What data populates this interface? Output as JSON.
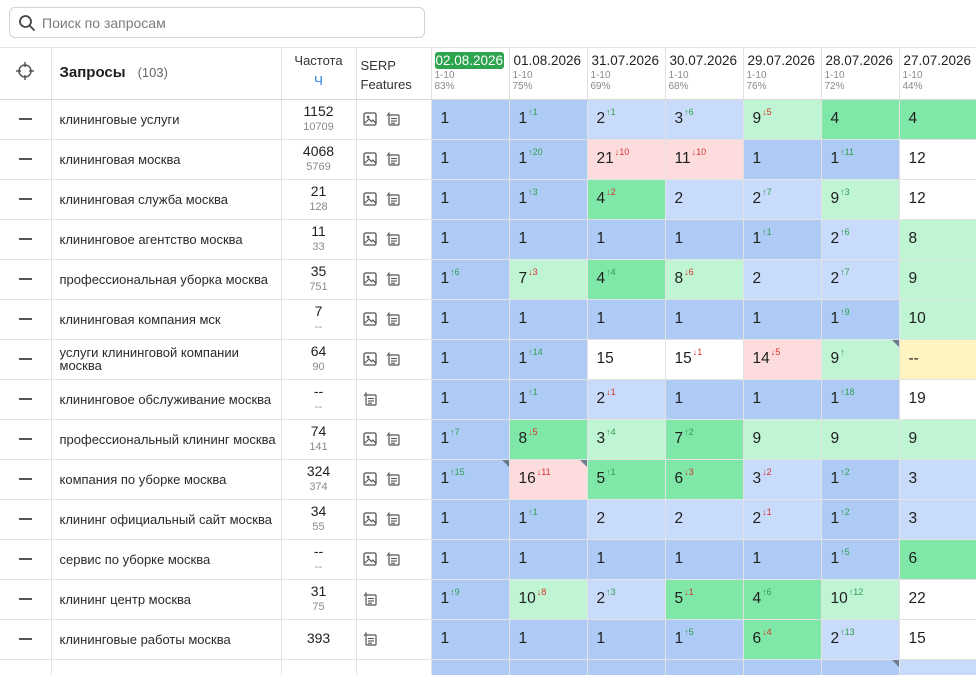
{
  "search": {
    "placeholder": "Поиск по запросам",
    "value": ""
  },
  "header": {
    "queries_label": "Запросы",
    "queries_count": "(103)",
    "frequency_label": "Частота",
    "frequency_sub": "Ч",
    "serp_line1": "SERP",
    "serp_line2": "Features",
    "dates": [
      {
        "date": "02.08.2026",
        "range": "1-10",
        "pct": "83%"
      },
      {
        "date": "01.08.2026",
        "range": "1-10",
        "pct": "75%"
      },
      {
        "date": "31.07.2026",
        "range": "1-10",
        "pct": "69%"
      },
      {
        "date": "30.07.2026",
        "range": "1-10",
        "pct": "68%"
      },
      {
        "date": "29.07.2026",
        "range": "1-10",
        "pct": "76%"
      },
      {
        "date": "28.07.2026",
        "range": "1-10",
        "pct": "72%"
      },
      {
        "date": "27.07.2026",
        "range": "1-10",
        "pct": "44%"
      }
    ]
  },
  "rows": [
    {
      "query": "клининговые услуги",
      "freq": "1152",
      "freq2": "10709",
      "serp": [
        "image",
        "snippet"
      ],
      "cells": [
        {
          "pos": "1",
          "d": "",
          "c": "b1"
        },
        {
          "pos": "1",
          "d": "↑1",
          "c": "b1"
        },
        {
          "pos": "2",
          "d": "↑1",
          "c": "b2"
        },
        {
          "pos": "3",
          "d": "↑6",
          "c": "b2"
        },
        {
          "pos": "9",
          "d": "↓5",
          "c": "g2"
        },
        {
          "pos": "4",
          "d": "",
          "c": "g1"
        },
        {
          "pos": "4",
          "d": "",
          "c": "g1"
        }
      ]
    },
    {
      "query": "клининговая москва",
      "freq": "4068",
      "freq2": "5769",
      "serp": [
        "image",
        "snippet"
      ],
      "cells": [
        {
          "pos": "1",
          "d": "",
          "c": "b1"
        },
        {
          "pos": "1",
          "d": "↑20",
          "c": "b1"
        },
        {
          "pos": "21",
          "d": "↓10",
          "c": "r1"
        },
        {
          "pos": "11",
          "d": "↓10",
          "c": "r1"
        },
        {
          "pos": "1",
          "d": "",
          "c": "b1"
        },
        {
          "pos": "1",
          "d": "↑11",
          "c": "b1"
        },
        {
          "pos": "12",
          "d": "",
          "c": "w1"
        }
      ]
    },
    {
      "query": "клининговая служба москва",
      "freq": "21",
      "freq2": "128",
      "serp": [
        "image",
        "snippet"
      ],
      "cells": [
        {
          "pos": "1",
          "d": "",
          "c": "b1"
        },
        {
          "pos": "1",
          "d": "↑3",
          "c": "b1"
        },
        {
          "pos": "4",
          "d": "↓2",
          "c": "g1"
        },
        {
          "pos": "2",
          "d": "",
          "c": "b2"
        },
        {
          "pos": "2",
          "d": "↑7",
          "c": "b2"
        },
        {
          "pos": "9",
          "d": "↑3",
          "c": "g2"
        },
        {
          "pos": "12",
          "d": "",
          "c": "w1"
        }
      ]
    },
    {
      "query": "клининговое агентство москва",
      "freq": "11",
      "freq2": "33",
      "serp": [
        "image",
        "snippet"
      ],
      "cells": [
        {
          "pos": "1",
          "d": "",
          "c": "b1"
        },
        {
          "pos": "1",
          "d": "",
          "c": "b1"
        },
        {
          "pos": "1",
          "d": "",
          "c": "b1"
        },
        {
          "pos": "1",
          "d": "",
          "c": "b1"
        },
        {
          "pos": "1",
          "d": "↑1",
          "c": "b1"
        },
        {
          "pos": "2",
          "d": "↑6",
          "c": "b2"
        },
        {
          "pos": "8",
          "d": "",
          "c": "g2"
        }
      ]
    },
    {
      "query": "профессиональная уборка москва",
      "freq": "35",
      "freq2": "751",
      "serp": [
        "image",
        "snippet"
      ],
      "cells": [
        {
          "pos": "1",
          "d": "↑6",
          "c": "b1"
        },
        {
          "pos": "7",
          "d": "↓3",
          "c": "g2"
        },
        {
          "pos": "4",
          "d": "↑4",
          "c": "g1"
        },
        {
          "pos": "8",
          "d": "↓6",
          "c": "g2"
        },
        {
          "pos": "2",
          "d": "",
          "c": "b2"
        },
        {
          "pos": "2",
          "d": "↑7",
          "c": "b2"
        },
        {
          "pos": "9",
          "d": "",
          "c": "g2"
        }
      ]
    },
    {
      "query": "клининговая компания мск",
      "freq": "7",
      "freq2": "--",
      "serp": [
        "image",
        "snippet"
      ],
      "cells": [
        {
          "pos": "1",
          "d": "",
          "c": "b1"
        },
        {
          "pos": "1",
          "d": "",
          "c": "b1"
        },
        {
          "pos": "1",
          "d": "",
          "c": "b1"
        },
        {
          "pos": "1",
          "d": "",
          "c": "b1"
        },
        {
          "pos": "1",
          "d": "",
          "c": "b1"
        },
        {
          "pos": "1",
          "d": "↑9",
          "c": "b1"
        },
        {
          "pos": "10",
          "d": "",
          "c": "g2"
        }
      ]
    },
    {
      "query": "услуги клининговой компании москва",
      "freq": "64",
      "freq2": "90",
      "serp": [
        "image",
        "snippet"
      ],
      "cells": [
        {
          "pos": "1",
          "d": "",
          "c": "b1"
        },
        {
          "pos": "1",
          "d": "↑14",
          "c": "b1"
        },
        {
          "pos": "15",
          "d": "",
          "c": "w1"
        },
        {
          "pos": "15",
          "d": "↓1",
          "c": "w1"
        },
        {
          "pos": "14",
          "d": "↓5",
          "c": "r1"
        },
        {
          "pos": "9",
          "d": "↑",
          "c": "g2",
          "corner": true
        },
        {
          "pos": "--",
          "d": "",
          "c": "y1"
        }
      ]
    },
    {
      "query": "клининговое обслуживание москва",
      "freq": "--",
      "freq2": "--",
      "serp": [
        "snippet"
      ],
      "cells": [
        {
          "pos": "1",
          "d": "",
          "c": "b1"
        },
        {
          "pos": "1",
          "d": "↑1",
          "c": "b1"
        },
        {
          "pos": "2",
          "d": "↓1",
          "c": "b2"
        },
        {
          "pos": "1",
          "d": "",
          "c": "b1"
        },
        {
          "pos": "1",
          "d": "",
          "c": "b1"
        },
        {
          "pos": "1",
          "d": "↑18",
          "c": "b1"
        },
        {
          "pos": "19",
          "d": "",
          "c": "w1"
        }
      ]
    },
    {
      "query": "профессиональный клининг москва",
      "freq": "74",
      "freq2": "141",
      "serp": [
        "image",
        "snippet"
      ],
      "cells": [
        {
          "pos": "1",
          "d": "↑7",
          "c": "b1"
        },
        {
          "pos": "8",
          "d": "↓5",
          "c": "g1"
        },
        {
          "pos": "3",
          "d": "↑4",
          "c": "g2"
        },
        {
          "pos": "7",
          "d": "↑2",
          "c": "g1"
        },
        {
          "pos": "9",
          "d": "",
          "c": "g2"
        },
        {
          "pos": "9",
          "d": "",
          "c": "g2"
        },
        {
          "pos": "9",
          "d": "",
          "c": "g2"
        }
      ]
    },
    {
      "query": "компания по уборке москва",
      "freq": "324",
      "freq2": "374",
      "serp": [
        "image",
        "snippet"
      ],
      "cells": [
        {
          "pos": "1",
          "d": "↑15",
          "c": "b1",
          "corner": true
        },
        {
          "pos": "16",
          "d": "↓11",
          "c": "r1",
          "corner": true
        },
        {
          "pos": "5",
          "d": "↑1",
          "c": "g1"
        },
        {
          "pos": "6",
          "d": "↓3",
          "c": "g1"
        },
        {
          "pos": "3",
          "d": "↓2",
          "c": "b2"
        },
        {
          "pos": "1",
          "d": "↑2",
          "c": "b1"
        },
        {
          "pos": "3",
          "d": "",
          "c": "b2"
        }
      ]
    },
    {
      "query": "клининг официальный сайт москва",
      "freq": "34",
      "freq2": "55",
      "serp": [
        "image",
        "snippet"
      ],
      "cells": [
        {
          "pos": "1",
          "d": "",
          "c": "b1"
        },
        {
          "pos": "1",
          "d": "↑1",
          "c": "b1"
        },
        {
          "pos": "2",
          "d": "",
          "c": "b2"
        },
        {
          "pos": "2",
          "d": "",
          "c": "b2"
        },
        {
          "pos": "2",
          "d": "↓1",
          "c": "b2"
        },
        {
          "pos": "1",
          "d": "↑2",
          "c": "b1"
        },
        {
          "pos": "3",
          "d": "",
          "c": "b2"
        }
      ]
    },
    {
      "query": "сервис по уборке москва",
      "freq": "--",
      "freq2": "--",
      "serp": [
        "image",
        "snippet"
      ],
      "cells": [
        {
          "pos": "1",
          "d": "",
          "c": "b1"
        },
        {
          "pos": "1",
          "d": "",
          "c": "b1"
        },
        {
          "pos": "1",
          "d": "",
          "c": "b1"
        },
        {
          "pos": "1",
          "d": "",
          "c": "b1"
        },
        {
          "pos": "1",
          "d": "",
          "c": "b1"
        },
        {
          "pos": "1",
          "d": "↑5",
          "c": "b1"
        },
        {
          "pos": "6",
          "d": "",
          "c": "g1"
        }
      ]
    },
    {
      "query": "клининг центр москва",
      "freq": "31",
      "freq2": "75",
      "serp": [
        "snippet"
      ],
      "cells": [
        {
          "pos": "1",
          "d": "↑9",
          "c": "b1"
        },
        {
          "pos": "10",
          "d": "↓8",
          "c": "g2"
        },
        {
          "pos": "2",
          "d": "↑3",
          "c": "b2"
        },
        {
          "pos": "5",
          "d": "↓1",
          "c": "g1"
        },
        {
          "pos": "4",
          "d": "↑6",
          "c": "g1"
        },
        {
          "pos": "10",
          "d": "↑12",
          "c": "g2"
        },
        {
          "pos": "22",
          "d": "",
          "c": "w1"
        }
      ]
    },
    {
      "query": "клининговые работы москва",
      "freq": "393",
      "freq2": "",
      "serp": [
        "snippet"
      ],
      "cells": [
        {
          "pos": "1",
          "d": "",
          "c": "b1"
        },
        {
          "pos": "1",
          "d": "",
          "c": "b1"
        },
        {
          "pos": "1",
          "d": "",
          "c": "b1"
        },
        {
          "pos": "1",
          "d": "↑5",
          "c": "b1"
        },
        {
          "pos": "6",
          "d": "↓4",
          "c": "g1"
        },
        {
          "pos": "2",
          "d": "↑13",
          "c": "b2"
        },
        {
          "pos": "15",
          "d": "",
          "c": "w1"
        }
      ]
    },
    {
      "query": "",
      "freq": "",
      "freq2": "",
      "serp": [],
      "cells": [
        {
          "pos": "",
          "d": "",
          "c": "b1"
        },
        {
          "pos": "",
          "d": "",
          "c": "b1"
        },
        {
          "pos": "",
          "d": "",
          "c": "b1"
        },
        {
          "pos": "",
          "d": "",
          "c": "b1"
        },
        {
          "pos": "",
          "d": "",
          "c": "b1"
        },
        {
          "pos": "",
          "d": "",
          "c": "b1",
          "corner": true
        },
        {
          "pos": "",
          "d": "",
          "c": "b2"
        }
      ]
    }
  ]
}
